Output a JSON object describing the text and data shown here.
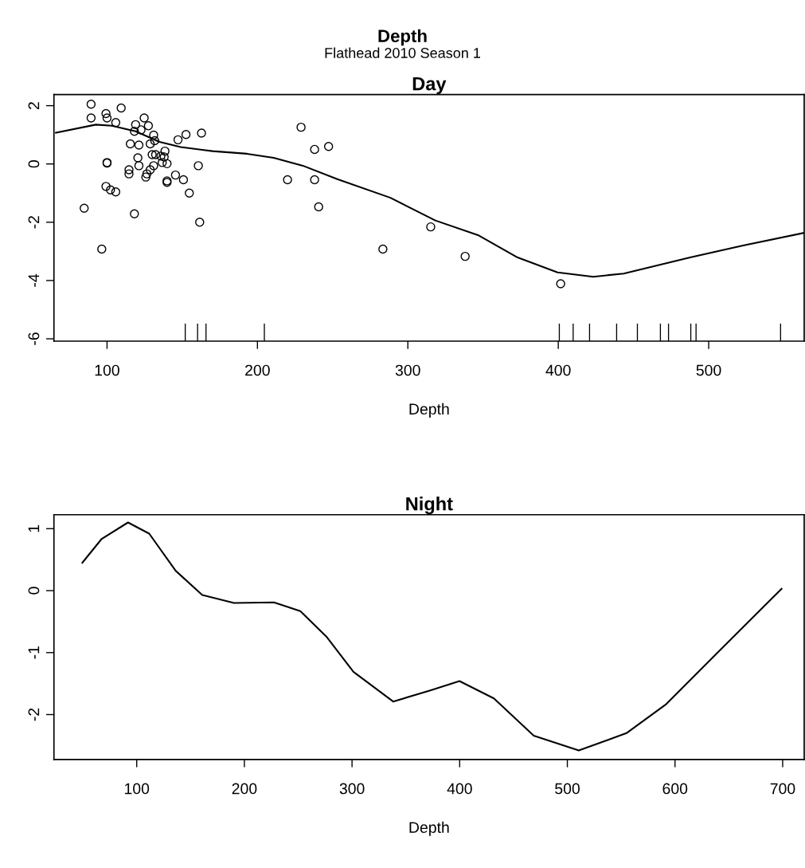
{
  "chart_data": [
    {
      "type": "scatter",
      "title": "Day",
      "xlabel": "Depth",
      "annotations": [
        "Depth",
        "Flathead 2010 Season 1"
      ],
      "xlim": [
        64.7,
        563.5
      ],
      "ylim": [
        -6.08,
        2.38
      ],
      "xticks": [
        100,
        200,
        300,
        400,
        500
      ],
      "yticks": [
        -6,
        -4,
        -2,
        0,
        2
      ],
      "grid": false,
      "series": [
        {
          "marker": "circle",
          "color": "#000000",
          "x": [
            89.4,
            89.4,
            99.3,
            100,
            109.4,
            105.8,
            119,
            124.7,
            127.5,
            122.6,
            118.2,
            131,
            131.7,
            128.7,
            115.5,
            121.2,
            147.2,
            152.5,
            162.8,
            138.5,
            130,
            132.3,
            135.8,
            138,
            120.5,
            100,
            100,
            136.7,
            139.9,
            121.2,
            160.7,
            114.6,
            114.6,
            131,
            128.7,
            126.5,
            125.8,
            145.5,
            150.8,
            139.9,
            139.9,
            154.7,
            99.3,
            102.3,
            105.8,
            84.8,
            118.2,
            161.6,
            96.5,
            220,
            238,
            229,
            238,
            247.3,
            240.7,
            283.4,
            315.2,
            338.1,
            401.6
          ],
          "values": [
            2.05,
            1.58,
            1.73,
            1.58,
            1.92,
            1.42,
            1.35,
            1.58,
            1.31,
            1.17,
            1.12,
            0.99,
            0.8,
            0.69,
            0.69,
            0.65,
            0.83,
            1.01,
            1.06,
            0.44,
            0.32,
            0.32,
            0.27,
            0.24,
            0.21,
            0.05,
            0.03,
            0.05,
            0.01,
            -0.06,
            -0.06,
            -0.2,
            -0.34,
            -0.06,
            -0.2,
            -0.34,
            -0.45,
            -0.38,
            -0.54,
            -0.58,
            -0.63,
            -1.0,
            -0.77,
            -0.89,
            -0.96,
            -1.52,
            -1.71,
            -2.0,
            -2.92,
            -0.54,
            -0.54,
            1.26,
            0.5,
            0.6,
            -1.47,
            -2.92,
            -2.16,
            -3.17,
            -4.11
          ]
        },
        {
          "type": "line",
          "marker": "none",
          "line_style": "solid",
          "color": "#000000",
          "x": [
            66,
            92.6,
            103.2,
            119,
            134.9,
            149,
            170.2,
            193.1,
            210.8,
            230.2,
            253.1,
            288.4,
            318.3,
            346.6,
            373,
            399.5,
            423.3,
            443.5,
            487.6,
            522.9,
            563
          ],
          "values": [
            1.07,
            1.35,
            1.31,
            1.12,
            0.76,
            0.58,
            0.44,
            0.35,
            0.21,
            -0.06,
            -0.52,
            -1.16,
            -1.94,
            -2.44,
            -3.21,
            -3.72,
            -3.87,
            -3.76,
            -3.21,
            -2.8,
            -2.37
          ]
        },
        {
          "type": "bar",
          "color": "#000000",
          "base": [
            -6.08,
            -6.08,
            -6.08,
            -6.08,
            -6.08,
            -6.08,
            -6.08,
            -6.08,
            -6.08,
            -6.08,
            -6.08,
            -6.08,
            -6.08,
            -6.08
          ],
          "x": [
            152,
            160.2,
            165.8,
            204.6,
            400.7,
            409.9,
            420.8,
            438.8,
            452.6,
            467.9,
            473.3,
            488.1,
            491.6,
            547.8
          ],
          "values": [
            0.6,
            0.6,
            0.6,
            0.6,
            0.6,
            0.6,
            0.6,
            0.6,
            0.6,
            0.6,
            0.6,
            0.6,
            0.6,
            0.6
          ]
        }
      ]
    },
    {
      "type": "line",
      "title": "Night",
      "xlabel": "Depth",
      "xlim": [
        23.1,
        720
      ],
      "ylim": [
        -2.725,
        1.225
      ],
      "xticks": [
        100,
        200,
        300,
        400,
        500,
        600,
        700
      ],
      "yticks": [
        -2,
        -1,
        0,
        1
      ],
      "grid": false,
      "series": [
        {
          "marker": "none",
          "line_style": "solid",
          "color": "#000000",
          "x": [
            49.5,
            67.2,
            91.9,
            111.6,
            136.2,
            160.9,
            190.4,
            227.4,
            252,
            276.6,
            301.3,
            338.2,
            372.6,
            399.8,
            431.8,
            468.8,
            510.6,
            554.9,
            591.9,
            641.2,
            699
          ],
          "values": [
            0.45,
            0.83,
            1.1,
            0.92,
            0.32,
            -0.07,
            -0.2,
            -0.19,
            -0.33,
            -0.75,
            -1.31,
            -1.79,
            -1.61,
            -1.46,
            -1.74,
            -2.34,
            -2.58,
            -2.3,
            -1.83,
            -0.97,
            0.03
          ]
        }
      ]
    }
  ]
}
